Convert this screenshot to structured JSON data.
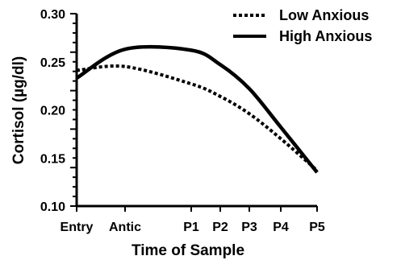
{
  "chart_data": {
    "type": "line",
    "title": "",
    "xlabel": "Time of Sample",
    "ylabel": "Cortisol (µg/dl)",
    "categories": [
      "Entry",
      "Antic",
      "P1",
      "P2",
      "P3",
      "P4",
      "P5"
    ],
    "ylim": [
      0.1,
      0.3
    ],
    "yticks": [
      "0.10",
      "0.15",
      "0.20",
      "0.25",
      "0.30"
    ],
    "grid": false,
    "legend_position": "top-right",
    "series": [
      {
        "name": "Low Anxious",
        "style": "dotted",
        "color": "#000000",
        "points": [
          {
            "x": "Entry",
            "y": 0.241
          },
          {
            "x": "Antic",
            "y": 0.245
          },
          {
            "x": "P1",
            "y": 0.227
          },
          {
            "x": "P2",
            "y": 0.214
          },
          {
            "x": "P3",
            "y": 0.196
          },
          {
            "x": "P4",
            "y": 0.17
          },
          {
            "x": "P5",
            "y": 0.137
          }
        ]
      },
      {
        "name": "High Anxious",
        "style": "solid",
        "color": "#000000",
        "points": [
          {
            "x": "Entry",
            "y": 0.233
          },
          {
            "x": "Antic",
            "y": 0.263
          },
          {
            "x": "P1",
            "y": 0.262
          },
          {
            "x": "P2",
            "y": 0.247
          },
          {
            "x": "P3",
            "y": 0.222
          },
          {
            "x": "P4",
            "y": 0.182
          },
          {
            "x": "P5",
            "y": 0.135
          }
        ]
      }
    ]
  }
}
